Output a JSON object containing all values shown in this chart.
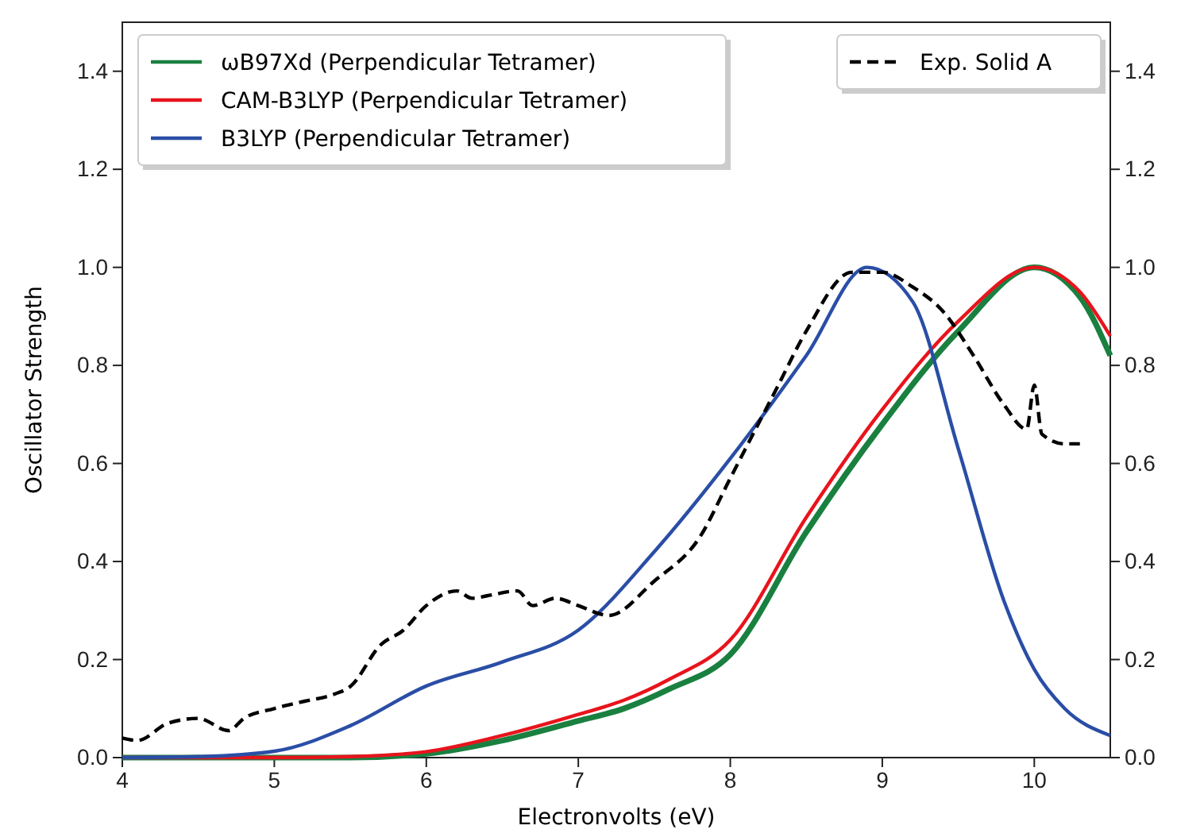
{
  "chart_data": {
    "type": "line",
    "xlabel": "Electronvolts (eV)",
    "ylabel": "Oscillator Strength",
    "xlim": [
      4,
      10.5
    ],
    "xticks": [
      4,
      5,
      6,
      7,
      8,
      9,
      10
    ],
    "ylim": [
      0,
      1.5
    ],
    "yticks": [
      {
        "value": 0,
        "label": "0.0"
      },
      0.2,
      0.4,
      0.6,
      0.8,
      {
        "value": 1,
        "label": "1.0"
      },
      1.2,
      1.4
    ],
    "y2lim": [
      0,
      1.5
    ],
    "y2ticks": [
      {
        "value": 0,
        "label": "0.0"
      },
      0.2,
      0.4,
      0.6,
      0.8,
      {
        "value": 1,
        "label": "1.0"
      },
      1.2,
      1.4
    ],
    "legend": "top",
    "grid": false,
    "series": [
      {
        "name": "ωB97Xd (Perpendicular Tetramer)",
        "color": "#1a8040",
        "line_style": "solid",
        "x": [
          4,
          5,
          5.5,
          6,
          6.5,
          7,
          7.3,
          7.6,
          8,
          8.5,
          9,
          9.5,
          10,
          10.3,
          10.5
        ],
        "values": [
          0,
          0,
          0,
          0.008,
          0.035,
          0.075,
          0.1,
          0.14,
          0.21,
          0.46,
          0.68,
          0.87,
          1.0,
          0.94,
          0.82
        ]
      },
      {
        "name": "CAM-B3LYP (Perpendicular Tetramer)",
        "color": "#e8141c",
        "line_style": "solid",
        "x": [
          4,
          5,
          5.5,
          6,
          6.5,
          7,
          7.3,
          7.6,
          8,
          8.5,
          9,
          9.5,
          10,
          10.3,
          10.5
        ],
        "values": [
          0,
          0,
          0.002,
          0.012,
          0.045,
          0.088,
          0.117,
          0.16,
          0.24,
          0.49,
          0.71,
          0.89,
          1.0,
          0.95,
          0.86
        ]
      },
      {
        "name": "B3LYP (Perpendicular Tetramer)",
        "color": "#2a4ea6",
        "line_style": "solid",
        "x": [
          4,
          4.5,
          5,
          5.5,
          6,
          6.5,
          7,
          7.5,
          8,
          8.5,
          8.9,
          9.2,
          9.5,
          9.8,
          10,
          10.2,
          10.5
        ],
        "values": [
          0,
          0.002,
          0.013,
          0.065,
          0.146,
          0.195,
          0.26,
          0.42,
          0.61,
          0.82,
          1.0,
          0.93,
          0.63,
          0.32,
          0.18,
          0.1,
          0.045
        ]
      },
      {
        "name": "Exp. Solid A",
        "color": "#000000",
        "line_style": "dashed",
        "x": [
          4,
          4.1,
          4.3,
          4.5,
          4.7,
          4.8,
          5,
          5.2,
          5.4,
          5.5,
          5.7,
          5.85,
          6,
          6.2,
          6.3,
          6.4,
          6.6,
          6.7,
          6.85,
          7,
          7.2,
          7.5,
          7.8,
          8,
          8.3,
          8.5,
          8.8,
          9,
          9.2,
          9.4,
          9.6,
          9.8,
          9.95,
          10,
          10.05,
          10.2,
          10.3
        ],
        "values": [
          0.04,
          0.035,
          0.07,
          0.08,
          0.055,
          0.08,
          0.1,
          0.115,
          0.13,
          0.145,
          0.23,
          0.26,
          0.31,
          0.34,
          0.325,
          0.33,
          0.34,
          0.31,
          0.325,
          0.31,
          0.29,
          0.36,
          0.45,
          0.57,
          0.75,
          0.87,
          0.99,
          0.99,
          0.96,
          0.91,
          0.82,
          0.72,
          0.67,
          0.76,
          0.66,
          0.64,
          0.64
        ]
      }
    ]
  }
}
